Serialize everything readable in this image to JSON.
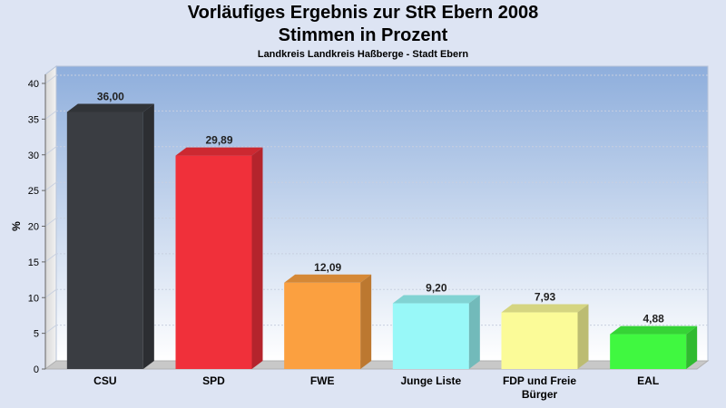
{
  "chart_data": {
    "type": "bar",
    "title": "Vorläufiges Ergebnis zur StR Ebern 2008",
    "subtitle": "Stimmen in Prozent",
    "subtitle2": "Landkreis Landkreis Haßberge - Stadt Ebern",
    "ylabel": "%",
    "ylim": [
      0,
      40
    ],
    "yticks": [
      0,
      5,
      10,
      15,
      20,
      25,
      30,
      35,
      40
    ],
    "categories": [
      {
        "lines": [
          "CSU"
        ]
      },
      {
        "lines": [
          "SPD"
        ]
      },
      {
        "lines": [
          "FWE"
        ]
      },
      {
        "lines": [
          "Junge Liste"
        ]
      },
      {
        "lines": [
          "FDP und  Freie",
          "Bürger"
        ]
      },
      {
        "lines": [
          "EAL"
        ]
      }
    ],
    "values": [
      36.0,
      29.89,
      12.09,
      9.2,
      7.93,
      4.88
    ],
    "value_labels": [
      "36,00",
      "29,89",
      "12,09",
      "9,20",
      "7,93",
      "4,88"
    ],
    "colors": [
      "#3a3d42",
      "#f0303a",
      "#fba040",
      "#98f8f8",
      "#fbfb98",
      "#40f840"
    ],
    "grid": true
  }
}
